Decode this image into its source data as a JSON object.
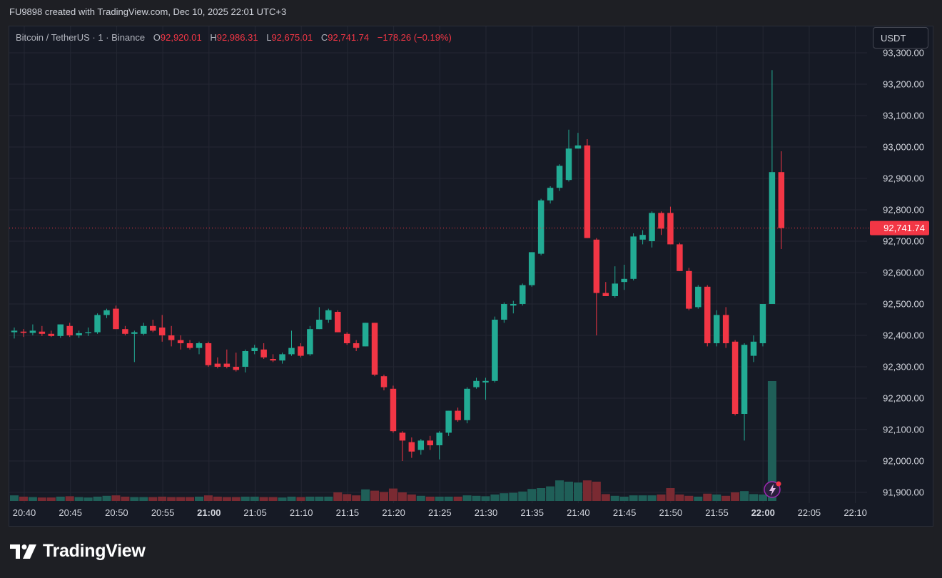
{
  "header": {
    "credit": "FU9898 created with TradingView.com, Dec 10, 2025 22:01 UTC+3"
  },
  "legend": {
    "symbol": "Bitcoin / TetherUS · 1 · Binance",
    "o_label": "O",
    "o_value": "92,920.01",
    "h_label": "H",
    "h_value": "92,986.31",
    "l_label": "L",
    "l_value": "92,675.01",
    "c_label": "C",
    "c_value": "92,741.74",
    "change": "−178.26 (−0.19%)"
  },
  "currency_button": "USDT",
  "brand": {
    "name": "TradingView",
    "icon": "tradingview-logo-icon"
  },
  "alert_icon": "lightning-bolt-icon",
  "colors": {
    "up": "#22ab94",
    "down": "#f23645",
    "up_volume": "#1f5f58",
    "down_volume": "#7a2a32",
    "grid": "#242733",
    "price_line": "#f23645"
  },
  "chart_data": {
    "type": "candlestick",
    "symbol": "Bitcoin / TetherUS",
    "interval": "1",
    "exchange": "Binance",
    "quote": "USDT",
    "y_ticks": [
      "91,900.00",
      "92,000.00",
      "92,100.00",
      "92,200.00",
      "92,300.00",
      "92,400.00",
      "92,500.00",
      "92,600.00",
      "92,700.00",
      "92,800.00",
      "92,900.00",
      "93,000.00",
      "93,100.00",
      "93,200.00",
      "93,300.00"
    ],
    "x_ticks": [
      {
        "label": "20:40",
        "bold": false
      },
      {
        "label": "20:45",
        "bold": false
      },
      {
        "label": "20:50",
        "bold": false
      },
      {
        "label": "20:55",
        "bold": false
      },
      {
        "label": "21:00",
        "bold": true
      },
      {
        "label": "21:05",
        "bold": false
      },
      {
        "label": "21:10",
        "bold": false
      },
      {
        "label": "21:15",
        "bold": false
      },
      {
        "label": "21:20",
        "bold": false
      },
      {
        "label": "21:25",
        "bold": false
      },
      {
        "label": "21:30",
        "bold": false
      },
      {
        "label": "21:35",
        "bold": false
      },
      {
        "label": "21:40",
        "bold": false
      },
      {
        "label": "21:45",
        "bold": false
      },
      {
        "label": "21:50",
        "bold": false
      },
      {
        "label": "21:55",
        "bold": false
      },
      {
        "label": "22:00",
        "bold": true
      },
      {
        "label": "22:05",
        "bold": false
      },
      {
        "label": "22:10",
        "bold": false
      }
    ],
    "y_range": [
      91870,
      93310
    ],
    "last_price": 92741.74,
    "last_price_label": "92,741.74",
    "start_time": "20:40",
    "bars": [
      {
        "t": "20:40",
        "o": 92410,
        "h": 92425,
        "l": 92390,
        "c": 92415,
        "v": 1.3
      },
      {
        "t": "20:41",
        "o": 92412,
        "h": 92420,
        "l": 92395,
        "c": 92408,
        "v": 1.0
      },
      {
        "t": "20:42",
        "o": 92408,
        "h": 92435,
        "l": 92400,
        "c": 92415,
        "v": 0.9
      },
      {
        "t": "20:43",
        "o": 92412,
        "h": 92430,
        "l": 92398,
        "c": 92405,
        "v": 0.8
      },
      {
        "t": "20:44",
        "o": 92405,
        "h": 92415,
        "l": 92395,
        "c": 92398,
        "v": 0.8
      },
      {
        "t": "20:45",
        "o": 92398,
        "h": 92435,
        "l": 92392,
        "c": 92435,
        "v": 1.0
      },
      {
        "t": "20:46",
        "o": 92430,
        "h": 92440,
        "l": 92395,
        "c": 92400,
        "v": 1.1
      },
      {
        "t": "20:47",
        "o": 92400,
        "h": 92415,
        "l": 92392,
        "c": 92407,
        "v": 0.9
      },
      {
        "t": "20:48",
        "o": 92407,
        "h": 92425,
        "l": 92398,
        "c": 92410,
        "v": 0.8
      },
      {
        "t": "20:49",
        "o": 92410,
        "h": 92470,
        "l": 92405,
        "c": 92465,
        "v": 1.0
      },
      {
        "t": "20:50",
        "o": 92465,
        "h": 92485,
        "l": 92455,
        "c": 92480,
        "v": 1.2
      },
      {
        "t": "20:51",
        "o": 92485,
        "h": 92495,
        "l": 92420,
        "c": 92420,
        "v": 1.3
      },
      {
        "t": "20:52",
        "o": 92420,
        "h": 92430,
        "l": 92400,
        "c": 92405,
        "v": 1.0
      },
      {
        "t": "20:53",
        "o": 92405,
        "h": 92415,
        "l": 92315,
        "c": 92410,
        "v": 0.9
      },
      {
        "t": "20:54",
        "o": 92405,
        "h": 92440,
        "l": 92400,
        "c": 92430,
        "v": 0.9
      },
      {
        "t": "20:55",
        "o": 92430,
        "h": 92450,
        "l": 92410,
        "c": 92415,
        "v": 0.9
      },
      {
        "t": "20:56",
        "o": 92425,
        "h": 92465,
        "l": 92380,
        "c": 92400,
        "v": 1.0
      },
      {
        "t": "20:57",
        "o": 92400,
        "h": 92430,
        "l": 92365,
        "c": 92385,
        "v": 0.9
      },
      {
        "t": "20:58",
        "o": 92385,
        "h": 92400,
        "l": 92355,
        "c": 92375,
        "v": 0.9
      },
      {
        "t": "20:59",
        "o": 92375,
        "h": 92385,
        "l": 92355,
        "c": 92360,
        "v": 0.9
      },
      {
        "t": "21:00",
        "o": 92360,
        "h": 92380,
        "l": 92340,
        "c": 92375,
        "v": 1.0
      },
      {
        "t": "21:01",
        "o": 92375,
        "h": 92380,
        "l": 92300,
        "c": 92305,
        "v": 1.3
      },
      {
        "t": "21:02",
        "o": 92310,
        "h": 92330,
        "l": 92295,
        "c": 92300,
        "v": 1.0
      },
      {
        "t": "21:03",
        "o": 92310,
        "h": 92355,
        "l": 92295,
        "c": 92300,
        "v": 0.9
      },
      {
        "t": "21:04",
        "o": 92300,
        "h": 92345,
        "l": 92285,
        "c": 92290,
        "v": 0.9
      },
      {
        "t": "21:05",
        "o": 92300,
        "h": 92355,
        "l": 92282,
        "c": 92350,
        "v": 1.0
      },
      {
        "t": "21:06",
        "o": 92350,
        "h": 92370,
        "l": 92340,
        "c": 92360,
        "v": 1.0
      },
      {
        "t": "21:07",
        "o": 92355,
        "h": 92375,
        "l": 92325,
        "c": 92330,
        "v": 0.9
      },
      {
        "t": "21:08",
        "o": 92325,
        "h": 92340,
        "l": 92315,
        "c": 92320,
        "v": 0.9
      },
      {
        "t": "21:09",
        "o": 92320,
        "h": 92345,
        "l": 92310,
        "c": 92340,
        "v": 0.8
      },
      {
        "t": "21:10",
        "o": 92340,
        "h": 92415,
        "l": 92335,
        "c": 92360,
        "v": 1.0
      },
      {
        "t": "21:11",
        "o": 92365,
        "h": 92375,
        "l": 92330,
        "c": 92335,
        "v": 0.9
      },
      {
        "t": "21:12",
        "o": 92340,
        "h": 92430,
        "l": 92335,
        "c": 92420,
        "v": 1.0
      },
      {
        "t": "21:13",
        "o": 92420,
        "h": 92490,
        "l": 92420,
        "c": 92450,
        "v": 1.0
      },
      {
        "t": "21:14",
        "o": 92450,
        "h": 92485,
        "l": 92440,
        "c": 92480,
        "v": 1.0
      },
      {
        "t": "21:15",
        "o": 92475,
        "h": 92480,
        "l": 92410,
        "c": 92410,
        "v": 2.0
      },
      {
        "t": "21:16",
        "o": 92405,
        "h": 92410,
        "l": 92370,
        "c": 92375,
        "v": 1.6
      },
      {
        "t": "21:17",
        "o": 92375,
        "h": 92385,
        "l": 92350,
        "c": 92360,
        "v": 1.3
      },
      {
        "t": "21:18",
        "o": 92365,
        "h": 92440,
        "l": 92365,
        "c": 92440,
        "v": 2.7
      },
      {
        "t": "21:19",
        "o": 92440,
        "h": 92440,
        "l": 92270,
        "c": 92275,
        "v": 2.4
      },
      {
        "t": "21:20",
        "o": 92270,
        "h": 92275,
        "l": 92225,
        "c": 92235,
        "v": 2.1
      },
      {
        "t": "21:21",
        "o": 92230,
        "h": 92240,
        "l": 92090,
        "c": 92095,
        "v": 2.9
      },
      {
        "t": "21:22",
        "o": 92090,
        "h": 92095,
        "l": 92000,
        "c": 92065,
        "v": 2.0
      },
      {
        "t": "21:23",
        "o": 92060,
        "h": 92075,
        "l": 92010,
        "c": 92030,
        "v": 1.5
      },
      {
        "t": "21:24",
        "o": 92035,
        "h": 92070,
        "l": 92020,
        "c": 92065,
        "v": 1.2
      },
      {
        "t": "21:25",
        "o": 92065,
        "h": 92080,
        "l": 92035,
        "c": 92050,
        "v": 1.0
      },
      {
        "t": "21:26",
        "o": 92050,
        "h": 92095,
        "l": 92005,
        "c": 92090,
        "v": 1.0
      },
      {
        "t": "21:27",
        "o": 92090,
        "h": 92160,
        "l": 92080,
        "c": 92160,
        "v": 1.0
      },
      {
        "t": "21:28",
        "o": 92160,
        "h": 92170,
        "l": 92125,
        "c": 92130,
        "v": 1.0
      },
      {
        "t": "21:29",
        "o": 92130,
        "h": 92235,
        "l": 92120,
        "c": 92230,
        "v": 1.3
      },
      {
        "t": "21:30",
        "o": 92235,
        "h": 92265,
        "l": 92230,
        "c": 92255,
        "v": 1.2
      },
      {
        "t": "21:31",
        "o": 92250,
        "h": 92265,
        "l": 92195,
        "c": 92255,
        "v": 1.1
      },
      {
        "t": "21:32",
        "o": 92255,
        "h": 92460,
        "l": 92250,
        "c": 92450,
        "v": 1.5
      },
      {
        "t": "21:33",
        "o": 92450,
        "h": 92505,
        "l": 92440,
        "c": 92500,
        "v": 1.8
      },
      {
        "t": "21:34",
        "o": 92495,
        "h": 92510,
        "l": 92470,
        "c": 92500,
        "v": 1.9
      },
      {
        "t": "21:35",
        "o": 92500,
        "h": 92565,
        "l": 92495,
        "c": 92560,
        "v": 2.2
      },
      {
        "t": "21:36",
        "o": 92560,
        "h": 92665,
        "l": 92555,
        "c": 92665,
        "v": 2.8
      },
      {
        "t": "21:37",
        "o": 92660,
        "h": 92835,
        "l": 92655,
        "c": 92830,
        "v": 3.0
      },
      {
        "t": "21:38",
        "o": 92830,
        "h": 92875,
        "l": 92820,
        "c": 92870,
        "v": 3.4
      },
      {
        "t": "21:39",
        "o": 92870,
        "h": 92945,
        "l": 92860,
        "c": 92940,
        "v": 4.8
      },
      {
        "t": "21:40",
        "o": 92895,
        "h": 93055,
        "l": 92890,
        "c": 92995,
        "v": 4.5
      },
      {
        "t": "21:41",
        "o": 92995,
        "h": 93045,
        "l": 92995,
        "c": 93005,
        "v": 4.3
      },
      {
        "t": "21:42",
        "o": 93005,
        "h": 93025,
        "l": 92710,
        "c": 92710,
        "v": 4.8
      },
      {
        "t": "21:43",
        "o": 92705,
        "h": 92710,
        "l": 92400,
        "c": 92535,
        "v": 4.5
      },
      {
        "t": "21:44",
        "o": 92535,
        "h": 92570,
        "l": 92525,
        "c": 92525,
        "v": 1.6
      },
      {
        "t": "21:45",
        "o": 92525,
        "h": 92620,
        "l": 92520,
        "c": 92565,
        "v": 1.2
      },
      {
        "t": "21:46",
        "o": 92570,
        "h": 92625,
        "l": 92545,
        "c": 92580,
        "v": 1.0
      },
      {
        "t": "21:47",
        "o": 92580,
        "h": 92725,
        "l": 92575,
        "c": 92715,
        "v": 1.3
      },
      {
        "t": "21:48",
        "o": 92705,
        "h": 92735,
        "l": 92690,
        "c": 92720,
        "v": 1.3
      },
      {
        "t": "21:49",
        "o": 92700,
        "h": 92795,
        "l": 92680,
        "c": 92790,
        "v": 1.3
      },
      {
        "t": "21:50",
        "o": 92790,
        "h": 92795,
        "l": 92720,
        "c": 92740,
        "v": 1.5
      },
      {
        "t": "21:51",
        "o": 92790,
        "h": 92810,
        "l": 92690,
        "c": 92690,
        "v": 3.0
      },
      {
        "t": "21:52",
        "o": 92690,
        "h": 92695,
        "l": 92605,
        "c": 92605,
        "v": 1.5
      },
      {
        "t": "21:53",
        "o": 92605,
        "h": 92615,
        "l": 92480,
        "c": 92485,
        "v": 1.2
      },
      {
        "t": "21:54",
        "o": 92490,
        "h": 92560,
        "l": 92485,
        "c": 92555,
        "v": 1.0
      },
      {
        "t": "21:55",
        "o": 92555,
        "h": 92560,
        "l": 92365,
        "c": 92375,
        "v": 1.7
      },
      {
        "t": "21:56",
        "o": 92375,
        "h": 92480,
        "l": 92365,
        "c": 92465,
        "v": 1.5
      },
      {
        "t": "21:57",
        "o": 92465,
        "h": 92490,
        "l": 92360,
        "c": 92375,
        "v": 1.2
      },
      {
        "t": "21:58",
        "o": 92380,
        "h": 92385,
        "l": 92145,
        "c": 92150,
        "v": 2.0
      },
      {
        "t": "21:59",
        "o": 92150,
        "h": 92375,
        "l": 92065,
        "c": 92370,
        "v": 2.3
      },
      {
        "t": "22:00",
        "o": 92335,
        "h": 92400,
        "l": 92315,
        "c": 92380,
        "v": 1.6
      },
      {
        "t": "22:01",
        "o": 92375,
        "h": 92490,
        "l": 92365,
        "c": 92500,
        "v": 1.5
      },
      {
        "t": "22:02",
        "o": 92500,
        "h": 93245,
        "l": 92500,
        "c": 92920,
        "v": 28.0
      },
      {
        "t": "22:03",
        "o": 92920.01,
        "h": 92986.31,
        "l": 92675.01,
        "c": 92741.74,
        "v": 0.0
      }
    ]
  }
}
